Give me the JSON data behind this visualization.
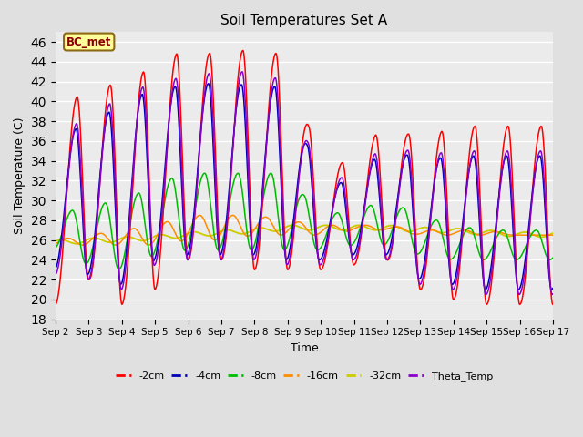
{
  "title": "Soil Temperatures Set A",
  "xlabel": "Time",
  "ylabel": "Soil Temperature (C)",
  "ylim": [
    18,
    47
  ],
  "yticks": [
    18,
    20,
    22,
    24,
    26,
    28,
    30,
    32,
    34,
    36,
    38,
    40,
    42,
    44,
    46
  ],
  "xtick_labels": [
    "Sep 2",
    "Sep 3",
    "Sep 4",
    "Sep 5",
    "Sep 6",
    "Sep 7",
    "Sep 8",
    "Sep 9",
    "Sep 10",
    "Sep 11",
    "Sep 12",
    "Sep 13",
    "Sep 14",
    "Sep 15",
    "Sep 16",
    "Sep 17"
  ],
  "annotation": "BC_met",
  "colors": {
    "neg2cm": "#FF0000",
    "neg4cm": "#0000BB",
    "neg8cm": "#00BB00",
    "neg16cm": "#FF8C00",
    "neg32cm": "#CCCC00",
    "theta": "#8800CC"
  },
  "legend_labels": [
    "-2cm",
    "-4cm",
    "-8cm",
    "-16cm",
    "-32cm",
    "Theta_Temp"
  ],
  "fig_bg": "#E0E0E0",
  "ax_bg": "#EBEBEB",
  "grid_color": "#FFFFFF"
}
